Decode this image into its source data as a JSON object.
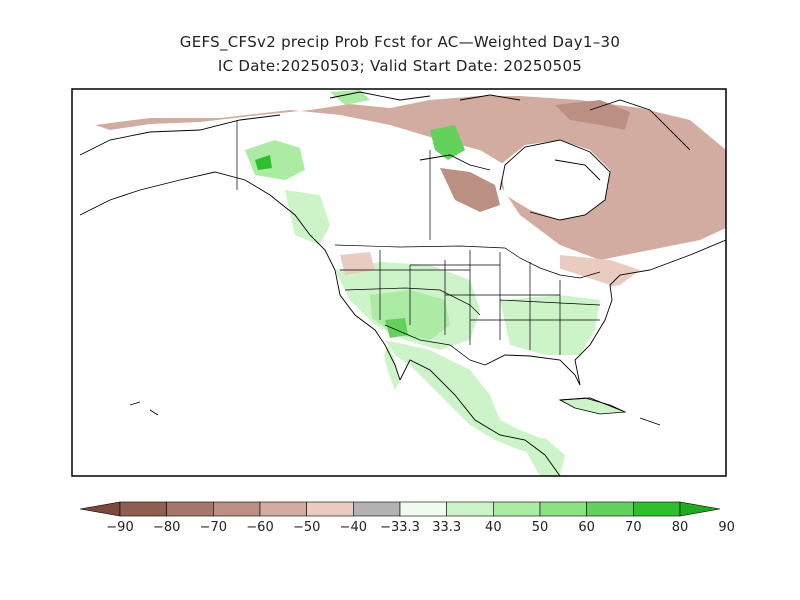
{
  "title": {
    "line1": "GEFS_CFSv2 precip Prob Fcst for AC—Weighted Day1–30",
    "line2": "IC Date:20250503; Valid Start Date: 20250505"
  },
  "legend": {
    "colors": [
      "#7a4b3c",
      "#8f5f52",
      "#a5776a",
      "#bb8f82",
      "#d2aca0",
      "#e9cbc0",
      "#b2b2b2",
      "#f1fbef",
      "#cdf4c8",
      "#abeba4",
      "#8ae283",
      "#62d25c",
      "#2fbf2c",
      "#1faa1f"
    ],
    "ticks": [
      "−90",
      "−80",
      "−70",
      "−60",
      "−50",
      "−40",
      "−33.3",
      "33.3",
      "40",
      "50",
      "60",
      "70",
      "80",
      "90"
    ]
  },
  "palette": {
    "ocean": "#ffffff",
    "neutral": "#ffffff",
    "light_brown": "#e9cbc0",
    "mid_brown": "#d2aca0",
    "dark_brown": "#bb8f82",
    "light_green": "#cdf4c8",
    "mid_green": "#abeba4",
    "dark_green": "#2fbf2c",
    "coast": "#000000"
  }
}
